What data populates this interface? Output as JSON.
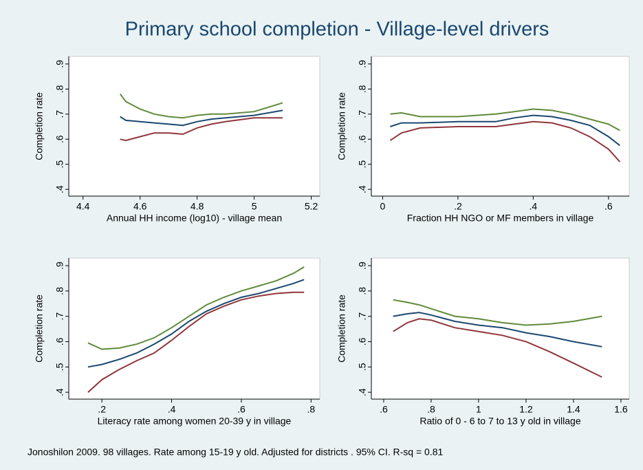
{
  "title": "Primary school completion - Village-level drivers",
  "note": "Jonoshilon 2009. 98 villages. Rate among 15-19 y old. Adjusted for districts . 95% CI. R-sq = 0.81",
  "chart_data": [
    {
      "type": "line",
      "xlabel": "Annual HH income (log10) - village mean",
      "ylabel": "Completion rate",
      "xlim": [
        4.35,
        5.23
      ],
      "ylim": [
        0.373,
        0.93
      ],
      "grid": false,
      "xticks": [
        4.4,
        4.6,
        4.8,
        {
          "value": 5,
          "label": "5"
        },
        5.2
      ],
      "yticks": [
        {
          "value": 0.4,
          "label": ".4"
        },
        {
          "value": 0.5,
          "label": ".5"
        },
        {
          "value": 0.6,
          "label": ".6"
        },
        {
          "value": 0.7,
          "label": ".7"
        },
        {
          "value": 0.8,
          "label": ".8"
        },
        {
          "value": 0.9,
          "label": ".9"
        }
      ],
      "x": [
        4.53,
        4.55,
        4.6,
        4.65,
        4.7,
        4.75,
        4.8,
        4.85,
        4.9,
        5.0,
        5.1
      ],
      "series": [
        {
          "color": "#5f8a3a",
          "values": [
            0.78,
            0.75,
            0.72,
            0.7,
            0.69,
            0.685,
            0.695,
            0.7,
            0.7,
            0.71,
            0.745
          ]
        },
        {
          "color": "#1a476f",
          "values": [
            0.69,
            0.675,
            0.67,
            0.665,
            0.66,
            0.655,
            0.67,
            0.68,
            0.685,
            0.695,
            0.715
          ]
        },
        {
          "color": "#90353b",
          "values": [
            0.6,
            0.595,
            0.61,
            0.625,
            0.625,
            0.62,
            0.645,
            0.66,
            0.67,
            0.685,
            0.685
          ]
        }
      ]
    },
    {
      "type": "line",
      "xlabel": "Fraction HH NGO or MF members in village",
      "ylabel": "Completion rate",
      "xlim": [
        -0.03,
        0.655
      ],
      "ylim": [
        0.373,
        0.93
      ],
      "grid": false,
      "xticks": [
        0,
        {
          "value": 0.2,
          "label": ".2"
        },
        {
          "value": 0.4,
          "label": ".4"
        },
        {
          "value": 0.6,
          "label": ".6"
        }
      ],
      "yticks": [
        {
          "value": 0.4,
          "label": ".4"
        },
        {
          "value": 0.5,
          "label": ".5"
        },
        {
          "value": 0.6,
          "label": ".6"
        },
        {
          "value": 0.7,
          "label": ".7"
        },
        {
          "value": 0.8,
          "label": ".8"
        },
        {
          "value": 0.9,
          "label": ".9"
        }
      ],
      "x": [
        0.02,
        0.05,
        0.1,
        0.2,
        0.3,
        0.35,
        0.4,
        0.45,
        0.5,
        0.55,
        0.6,
        0.63
      ],
      "series": [
        {
          "color": "#5f8a3a",
          "values": [
            0.7,
            0.705,
            0.69,
            0.69,
            0.7,
            0.71,
            0.72,
            0.715,
            0.7,
            0.68,
            0.66,
            0.635
          ]
        },
        {
          "color": "#1a476f",
          "values": [
            0.65,
            0.665,
            0.665,
            0.67,
            0.67,
            0.685,
            0.695,
            0.69,
            0.675,
            0.655,
            0.61,
            0.575
          ]
        },
        {
          "color": "#90353b",
          "values": [
            0.595,
            0.625,
            0.645,
            0.65,
            0.65,
            0.66,
            0.67,
            0.665,
            0.645,
            0.61,
            0.56,
            0.51
          ]
        }
      ]
    },
    {
      "type": "line",
      "xlabel": "Literacy rate among women 20-39 y in village",
      "ylabel": "Completion rate",
      "xlim": [
        0.105,
        0.825
      ],
      "ylim": [
        0.373,
        0.93
      ],
      "grid": false,
      "xticks": [
        {
          "value": 0.2,
          "label": ".2"
        },
        {
          "value": 0.4,
          "label": ".4"
        },
        {
          "value": 0.6,
          "label": ".6"
        },
        {
          "value": 0.8,
          "label": ".8"
        }
      ],
      "yticks": [
        {
          "value": 0.4,
          "label": ".4"
        },
        {
          "value": 0.5,
          "label": ".5"
        },
        {
          "value": 0.6,
          "label": ".6"
        },
        {
          "value": 0.7,
          "label": ".7"
        },
        {
          "value": 0.8,
          "label": ".8"
        },
        {
          "value": 0.9,
          "label": ".9"
        }
      ],
      "x": [
        0.16,
        0.2,
        0.25,
        0.3,
        0.35,
        0.4,
        0.45,
        0.5,
        0.55,
        0.6,
        0.65,
        0.7,
        0.75,
        0.78
      ],
      "series": [
        {
          "color": "#5f8a3a",
          "values": [
            0.595,
            0.57,
            0.575,
            0.59,
            0.615,
            0.655,
            0.7,
            0.745,
            0.775,
            0.8,
            0.82,
            0.84,
            0.87,
            0.895
          ]
        },
        {
          "color": "#1a476f",
          "values": [
            0.5,
            0.51,
            0.53,
            0.555,
            0.59,
            0.63,
            0.68,
            0.72,
            0.75,
            0.775,
            0.79,
            0.81,
            0.83,
            0.845
          ]
        },
        {
          "color": "#90353b",
          "values": [
            0.4,
            0.45,
            0.49,
            0.525,
            0.555,
            0.605,
            0.66,
            0.71,
            0.74,
            0.765,
            0.78,
            0.79,
            0.795,
            0.795
          ]
        }
      ]
    },
    {
      "type": "line",
      "xlabel": "Ratio of 0 - 6 to 7 to 13 y old in village",
      "ylabel": "Completion rate",
      "xlim": [
        0.548,
        1.635
      ],
      "ylim": [
        0.373,
        0.93
      ],
      "grid": false,
      "xticks": [
        {
          "value": 0.6,
          "label": ".6"
        },
        {
          "value": 0.8,
          "label": ".8"
        },
        1,
        1.2,
        1.4,
        1.6
      ],
      "yticks": [
        {
          "value": 0.4,
          "label": ".4"
        },
        {
          "value": 0.5,
          "label": ".5"
        },
        {
          "value": 0.6,
          "label": ".6"
        },
        {
          "value": 0.7,
          "label": ".7"
        },
        {
          "value": 0.8,
          "label": ".8"
        },
        {
          "value": 0.9,
          "label": ".9"
        }
      ],
      "x": [
        0.64,
        0.7,
        0.75,
        0.8,
        0.9,
        1.0,
        1.1,
        1.2,
        1.3,
        1.4,
        1.52
      ],
      "series": [
        {
          "color": "#5f8a3a",
          "values": [
            0.765,
            0.755,
            0.745,
            0.73,
            0.7,
            0.69,
            0.675,
            0.665,
            0.67,
            0.68,
            0.7
          ]
        },
        {
          "color": "#1a476f",
          "values": [
            0.7,
            0.71,
            0.715,
            0.705,
            0.68,
            0.665,
            0.655,
            0.635,
            0.62,
            0.6,
            0.58
          ]
        },
        {
          "color": "#90353b",
          "values": [
            0.64,
            0.675,
            0.69,
            0.685,
            0.655,
            0.64,
            0.625,
            0.6,
            0.56,
            0.515,
            0.46
          ]
        }
      ]
    }
  ]
}
